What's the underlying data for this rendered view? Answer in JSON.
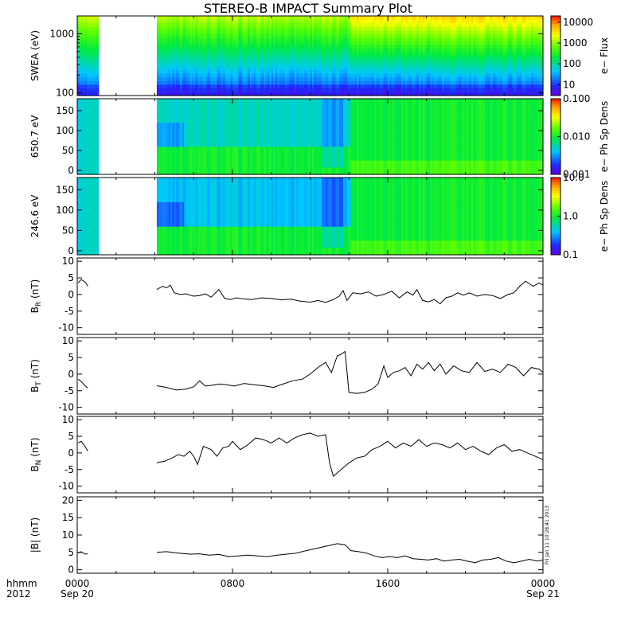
{
  "title": "STEREO-B IMPACT Summary Plot",
  "footer": {
    "row_label": "hhmm",
    "year": "2012",
    "x_ticks": [
      {
        "t": 0,
        "label": "0000",
        "date": "Sep 20"
      },
      {
        "t": 8,
        "label": "0800",
        "date": ""
      },
      {
        "t": 16,
        "label": "1600",
        "date": ""
      },
      {
        "t": 24,
        "label": "0000",
        "date": "Sep 21"
      }
    ],
    "stamp": "Fri Jan 11 10:28:41 2013"
  },
  "chart_data": [
    {
      "id": "swea",
      "type": "heatmap",
      "ylabel": "SWEA (eV)",
      "yscale": "log",
      "ylim": [
        90,
        2000
      ],
      "yticks": [
        {
          "v": 100,
          "label": "100"
        },
        {
          "v": 1000,
          "label": "1000"
        }
      ],
      "colorbar": {
        "label": "e− Flux",
        "scale": "log",
        "range": [
          3,
          20000
        ],
        "ticks": [
          {
            "v": 10,
            "label": "10"
          },
          {
            "v": 100,
            "label": "100"
          },
          {
            "v": 1000,
            "label": "1000"
          },
          {
            "v": 10000,
            "label": "10000"
          }
        ]
      },
      "data_gaps": [
        [
          1.1,
          4.1
        ]
      ]
    },
    {
      "id": "pad650",
      "type": "heatmap",
      "ylabel": "650.7 eV",
      "yscale": "linear",
      "ylim": [
        -10,
        180
      ],
      "yticks": [
        {
          "v": 0,
          "label": "0"
        },
        {
          "v": 50,
          "label": "50"
        },
        {
          "v": 100,
          "label": "100"
        },
        {
          "v": 150,
          "label": "150"
        }
      ],
      "colorbar": {
        "label": "e− Ph Sp Dens",
        "scale": "log",
        "range": [
          0.001,
          0.1
        ],
        "ticks": [
          {
            "v": 0.001,
            "label": "0.001"
          },
          {
            "v": 0.01,
            "label": "0.010"
          },
          {
            "v": 0.1,
            "label": "0.100"
          }
        ]
      },
      "data_gaps": [
        [
          1.1,
          4.1
        ]
      ]
    },
    {
      "id": "pad246",
      "type": "heatmap",
      "ylabel": "246.6 eV",
      "yscale": "linear",
      "ylim": [
        -10,
        180
      ],
      "yticks": [
        {
          "v": 0,
          "label": "0"
        },
        {
          "v": 50,
          "label": "50"
        },
        {
          "v": 100,
          "label": "100"
        },
        {
          "v": 150,
          "label": "150"
        }
      ],
      "colorbar": {
        "label": "e− Ph Sp Dens",
        "scale": "log",
        "range": [
          0.1,
          10
        ],
        "ticks": [
          {
            "v": 0.1,
            "label": "0.1"
          },
          {
            "v": 1,
            "label": "1.0"
          },
          {
            "v": 10,
            "label": "10.0"
          }
        ]
      },
      "data_gaps": [
        [
          1.1,
          4.1
        ]
      ]
    },
    {
      "id": "br",
      "type": "line",
      "ylabel_main": "B",
      "ylabel_sub": "R",
      "ylabel_unit": " (nT)",
      "ylim": [
        -12,
        11
      ],
      "yticks": [
        {
          "v": -10,
          "label": "-10"
        },
        {
          "v": -5,
          "label": "-5"
        },
        {
          "v": 0,
          "label": "0"
        },
        {
          "v": 5,
          "label": "5"
        },
        {
          "v": 10,
          "label": "10"
        }
      ],
      "series": [
        {
          "x": [
            0.05,
            0.2,
            0.4,
            0.55
          ],
          "y": [
            3.5,
            4.5,
            3.8,
            2.5
          ]
        },
        {
          "x": [
            4.1,
            4.4,
            4.6,
            4.8,
            5.0,
            5.3,
            5.6,
            6.0,
            6.3,
            6.6,
            6.9,
            7.3,
            7.6,
            7.9,
            8.2,
            8.5,
            9.0,
            9.5,
            10.0,
            10.5,
            11.0,
            11.5,
            12.0,
            12.4,
            12.8,
            13.2,
            13.5,
            13.7,
            13.9,
            14.2,
            14.6,
            15.0,
            15.4,
            15.8,
            16.2,
            16.6,
            17.0,
            17.3,
            17.5,
            17.8,
            18.1,
            18.4,
            18.7,
            19.0,
            19.3,
            19.6,
            19.9,
            20.2,
            20.6,
            21.0,
            21.4,
            21.8,
            22.2,
            22.5,
            22.8,
            23.1,
            23.5,
            23.8,
            24.0
          ],
          "y": [
            1.5,
            2.5,
            2.0,
            2.8,
            0.5,
            0.0,
            0.2,
            -0.5,
            -0.3,
            0.2,
            -0.8,
            1.5,
            -1.2,
            -1.5,
            -1.0,
            -1.3,
            -1.5,
            -1.0,
            -1.2,
            -1.6,
            -1.4,
            -2.0,
            -2.3,
            -1.8,
            -2.4,
            -1.5,
            -0.5,
            1.2,
            -1.8,
            0.5,
            0.2,
            0.8,
            -0.5,
            0.0,
            1.0,
            -1.0,
            0.8,
            -0.2,
            1.5,
            -1.8,
            -2.2,
            -1.5,
            -2.8,
            -1.0,
            -0.5,
            0.5,
            -0.2,
            0.5,
            -0.5,
            0.0,
            -0.3,
            -1.2,
            0.0,
            0.5,
            2.5,
            4.0,
            2.5,
            3.5,
            2.8
          ]
        }
      ]
    },
    {
      "id": "bt",
      "type": "line",
      "ylabel_main": "B",
      "ylabel_sub": "T",
      "ylabel_unit": " (nT)",
      "ylim": [
        -12,
        11
      ],
      "yticks": [
        {
          "v": -10,
          "label": "-10"
        },
        {
          "v": -5,
          "label": "-5"
        },
        {
          "v": 0,
          "label": "0"
        },
        {
          "v": 5,
          "label": "5"
        },
        {
          "v": 10,
          "label": "10"
        }
      ],
      "series": [
        {
          "x": [
            0.05,
            0.2,
            0.4,
            0.55
          ],
          "y": [
            -1.5,
            -2.2,
            -3.5,
            -4.2
          ]
        },
        {
          "x": [
            4.1,
            4.6,
            5.1,
            5.6,
            6.0,
            6.3,
            6.6,
            6.9,
            7.3,
            7.7,
            8.1,
            8.6,
            9.1,
            9.6,
            10.1,
            10.6,
            11.1,
            11.6,
            12.0,
            12.4,
            12.8,
            13.1,
            13.4,
            13.6,
            13.8,
            14.0,
            14.4,
            14.8,
            15.2,
            15.5,
            15.8,
            16.0,
            16.3,
            16.6,
            16.9,
            17.2,
            17.5,
            17.8,
            18.1,
            18.4,
            18.7,
            19.0,
            19.4,
            19.8,
            20.2,
            20.6,
            21.0,
            21.4,
            21.8,
            22.2,
            22.6,
            23.0,
            23.4,
            23.8,
            24.0
          ],
          "y": [
            -3.5,
            -4.0,
            -4.8,
            -4.5,
            -3.8,
            -2.0,
            -3.6,
            -3.4,
            -3.0,
            -3.2,
            -3.6,
            -2.8,
            -3.2,
            -3.5,
            -4.0,
            -3.0,
            -2.0,
            -1.5,
            0.0,
            2.0,
            3.5,
            0.5,
            5.5,
            6.0,
            6.8,
            -5.5,
            -5.8,
            -5.5,
            -4.5,
            -3.0,
            2.5,
            -1.0,
            0.5,
            1.0,
            2.0,
            -0.5,
            3.0,
            1.5,
            3.5,
            1.0,
            3.0,
            0.0,
            2.5,
            1.0,
            0.5,
            3.5,
            0.8,
            1.5,
            0.5,
            3.0,
            2.0,
            -0.5,
            2.0,
            1.5,
            0.5
          ]
        }
      ]
    },
    {
      "id": "bn",
      "type": "line",
      "ylabel_main": "B",
      "ylabel_sub": "N",
      "ylabel_unit": " (nT)",
      "ylim": [
        -12,
        11
      ],
      "yticks": [
        {
          "v": -10,
          "label": "-10"
        },
        {
          "v": -5,
          "label": "-5"
        },
        {
          "v": 0,
          "label": "0"
        },
        {
          "v": 5,
          "label": "5"
        },
        {
          "v": 10,
          "label": "10"
        }
      ],
      "series": [
        {
          "x": [
            0.05,
            0.2,
            0.4,
            0.55
          ],
          "y": [
            3.0,
            3.5,
            2.0,
            0.5
          ]
        },
        {
          "x": [
            4.1,
            4.5,
            4.9,
            5.2,
            5.5,
            5.8,
            6.0,
            6.2,
            6.5,
            6.9,
            7.2,
            7.5,
            7.8,
            8.0,
            8.4,
            8.8,
            9.2,
            9.6,
            10.0,
            10.4,
            10.8,
            11.2,
            11.6,
            12.0,
            12.4,
            12.8,
            13.0,
            13.2,
            13.6,
            14.0,
            14.4,
            14.8,
            15.2,
            15.6,
            16.0,
            16.4,
            16.8,
            17.2,
            17.6,
            18.0,
            18.4,
            18.8,
            19.2,
            19.6,
            20.0,
            20.4,
            20.8,
            21.2,
            21.6,
            22.0,
            22.4,
            22.8,
            23.2,
            23.6,
            24.0
          ],
          "y": [
            -3.0,
            -2.5,
            -1.5,
            -0.5,
            -1.0,
            0.5,
            -1.0,
            -3.5,
            2.0,
            1.0,
            -1.0,
            1.5,
            2.0,
            3.5,
            1.0,
            2.5,
            4.5,
            4.0,
            3.0,
            4.5,
            3.0,
            4.5,
            5.5,
            6.0,
            5.0,
            5.5,
            -3.0,
            -7.0,
            -5.0,
            -3.0,
            -1.5,
            -1.0,
            1.0,
            2.0,
            3.5,
            1.5,
            3.0,
            2.0,
            4.0,
            2.0,
            3.0,
            2.5,
            1.5,
            3.0,
            1.0,
            2.0,
            0.5,
            -0.5,
            1.5,
            2.5,
            0.5,
            1.0,
            0.0,
            -1.0,
            -2.0
          ]
        }
      ]
    },
    {
      "id": "bmag",
      "type": "line",
      "ylabel_main": "|B|",
      "ylabel_sub": "",
      "ylabel_unit": " (nT)",
      "ylim": [
        -1,
        21
      ],
      "yticks": [
        {
          "v": 0,
          "label": "0"
        },
        {
          "v": 5,
          "label": "5"
        },
        {
          "v": 10,
          "label": "10"
        },
        {
          "v": 15,
          "label": "15"
        },
        {
          "v": 20,
          "label": "20"
        }
      ],
      "series": [
        {
          "x": [
            0.05,
            0.2,
            0.4,
            0.55
          ],
          "y": [
            4.8,
            5.2,
            4.5,
            4.6
          ]
        },
        {
          "x": [
            4.1,
            4.6,
            5.2,
            5.8,
            6.3,
            6.8,
            7.3,
            7.8,
            8.3,
            8.8,
            9.3,
            9.8,
            10.3,
            10.8,
            11.3,
            11.8,
            12.2,
            12.6,
            13.0,
            13.4,
            13.8,
            14.1,
            14.5,
            14.9,
            15.3,
            15.7,
            16.1,
            16.5,
            16.9,
            17.3,
            17.7,
            18.1,
            18.5,
            18.9,
            19.3,
            19.7,
            20.1,
            20.5,
            20.9,
            21.3,
            21.7,
            22.1,
            22.5,
            22.9,
            23.3,
            23.7,
            24.0
          ],
          "y": [
            5.0,
            5.2,
            4.8,
            4.5,
            4.6,
            4.2,
            4.4,
            3.8,
            4.0,
            4.2,
            4.0,
            3.8,
            4.2,
            4.5,
            4.8,
            5.5,
            6.0,
            6.5,
            7.0,
            7.5,
            7.2,
            5.5,
            5.2,
            4.8,
            4.0,
            3.5,
            3.8,
            3.5,
            4.0,
            3.2,
            3.0,
            2.8,
            3.2,
            2.5,
            2.8,
            3.0,
            2.5,
            2.0,
            2.8,
            3.0,
            3.5,
            2.5,
            2.0,
            2.5,
            3.0,
            2.5,
            2.8
          ]
        }
      ]
    }
  ]
}
